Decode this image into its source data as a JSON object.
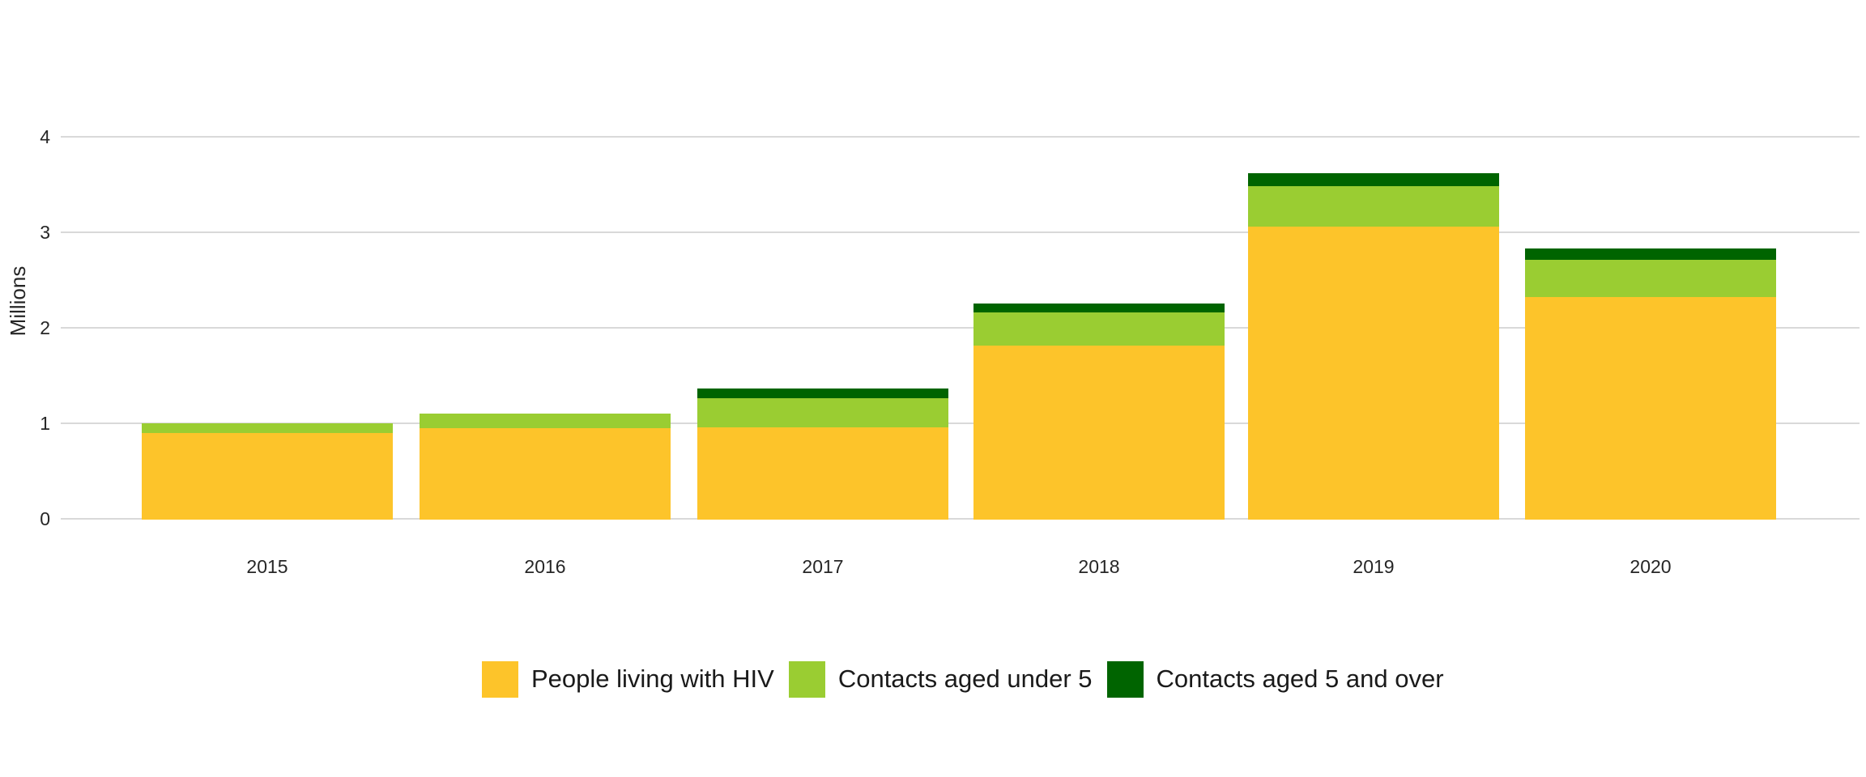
{
  "chart_data": {
    "type": "bar",
    "stacked": true,
    "title": "",
    "xlabel": "",
    "ylabel": "Millions",
    "categories": [
      "2015",
      "2016",
      "2017",
      "2018",
      "2019",
      "2020"
    ],
    "series": [
      {
        "name": "People living with HIV",
        "color": "#FDC42A",
        "values": [
          0.91,
          0.96,
          0.97,
          1.82,
          3.07,
          2.33
        ]
      },
      {
        "name": "Contacts aged under 5",
        "color": "#9ACD32",
        "values": [
          0.1,
          0.15,
          0.3,
          0.35,
          0.42,
          0.39
        ]
      },
      {
        "name": "Contacts aged 5 and over",
        "color": "#006400",
        "values": [
          0.0,
          0.0,
          0.1,
          0.09,
          0.14,
          0.12
        ]
      }
    ],
    "y_ticks": [
      0,
      1,
      2,
      3,
      4
    ],
    "ylim": [
      0,
      4.6
    ],
    "grid": true,
    "gridline_color": "#D9D9D9",
    "text_color": "#262626",
    "legend_position": "bottom"
  }
}
